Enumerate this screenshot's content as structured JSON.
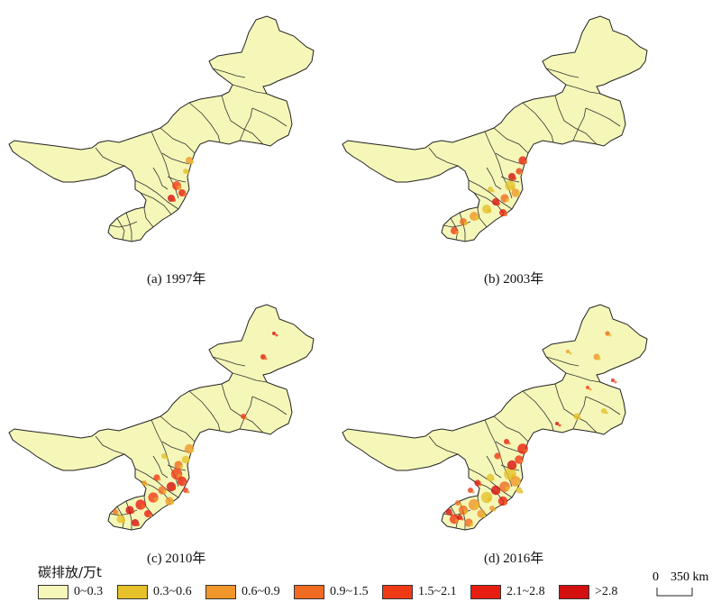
{
  "panels": [
    {
      "caption": "(a) 1997年",
      "level": 1
    },
    {
      "caption": "(b) 2003年",
      "level": 2
    },
    {
      "caption": "(c) 2010年",
      "level": 3
    },
    {
      "caption": "(d) 2016年",
      "level": 4
    }
  ],
  "legend": {
    "title": "碳排放/万t",
    "classes": [
      {
        "label": "0~0.3",
        "color": "#f5f7b8"
      },
      {
        "label": "0.3~0.6",
        "color": "#e6c12a"
      },
      {
        "label": "0.6~0.9",
        "color": "#f0962a"
      },
      {
        "label": "0.9~1.5",
        "color": "#f06a22"
      },
      {
        "label": "1.5~2.1",
        "color": "#f03a16"
      },
      {
        "label": "2.1~2.8",
        "color": "#e81d12"
      },
      {
        "label": ">2.8",
        "color": "#d40f10"
      }
    ]
  },
  "scale": {
    "zero": "0",
    "distance": "350 km"
  }
}
